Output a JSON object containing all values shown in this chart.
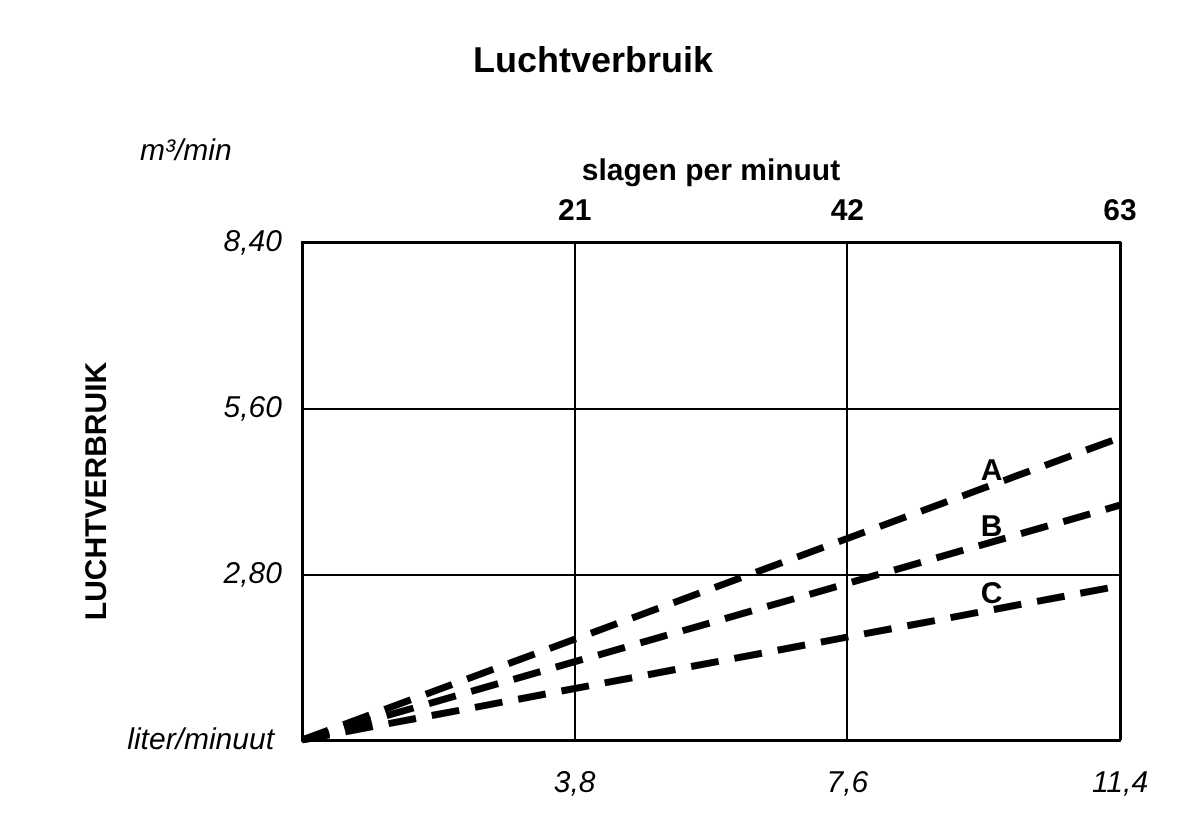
{
  "chart_data": {
    "type": "line",
    "title": "Luchtverbruik",
    "ylabel": "LUCHTVERBRUIK",
    "xlabel": "liter/minuut",
    "x2label": "slagen per minuut",
    "annotations": [
      "m³/min"
    ],
    "x": [
      0,
      9.5,
      11.4
    ],
    "series": [
      {
        "name": "A",
        "color": "#000000",
        "values": [
          0,
          4.25,
          5.1
        ]
      },
      {
        "name": "B",
        "color": "#000000",
        "values": [
          0,
          3.3,
          3.96
        ]
      },
      {
        "name": "C",
        "color": "#000000",
        "values": [
          0,
          2.17,
          2.6
        ]
      }
    ],
    "xlim": [
      0,
      11.4
    ],
    "xticks": [
      {
        "value": 3.8,
        "label": "3,8"
      },
      {
        "value": 7.6,
        "label": "7,6"
      },
      {
        "value": 11.4,
        "label": "11,4"
      }
    ],
    "x2lim": [
      0,
      63
    ],
    "x2ticks": [
      21,
      42,
      63
    ],
    "ylim": [
      0,
      8.4
    ],
    "yticks": [
      {
        "value": 2.8,
        "label": "2,80"
      },
      {
        "value": 5.6,
        "label": "5,60"
      },
      {
        "value": 8.4,
        "label": "8,40"
      }
    ],
    "grid": true,
    "legend": false,
    "marker": "none",
    "line_style": "dashed"
  }
}
